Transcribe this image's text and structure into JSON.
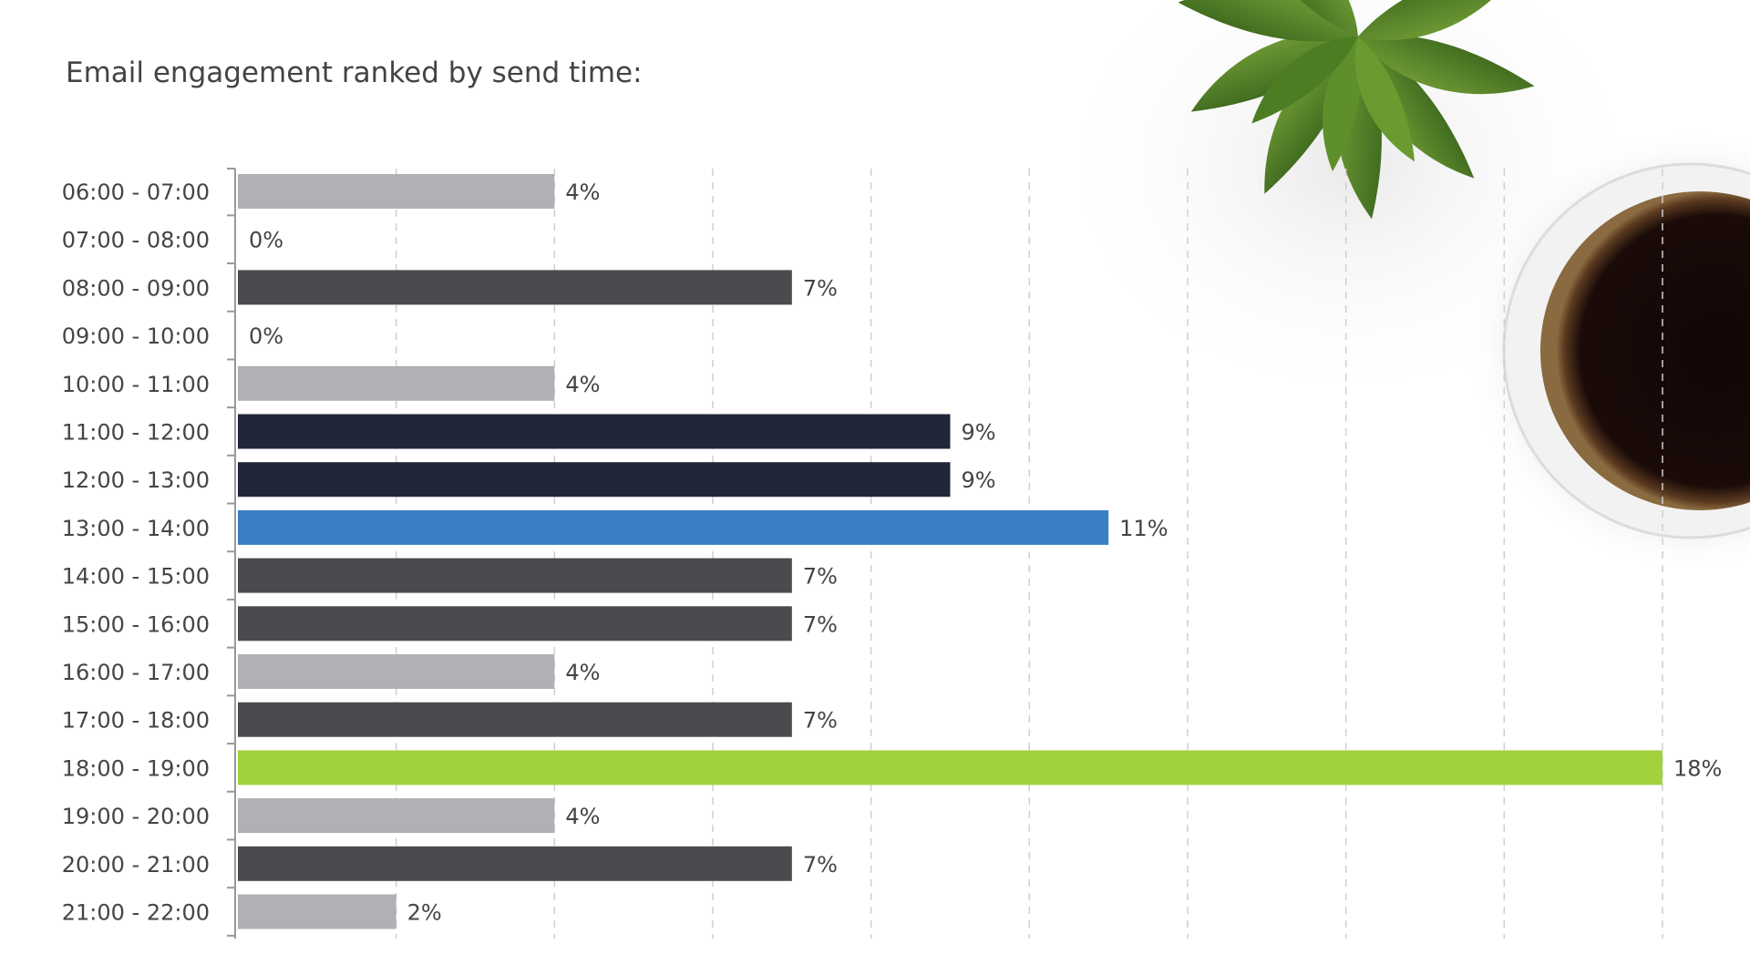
{
  "chart_data": {
    "type": "bar",
    "orientation": "horizontal",
    "title": "Email engagement ranked by send time:",
    "xlabel": "",
    "ylabel": "",
    "xlim": [
      0,
      18
    ],
    "grid_ticks": [
      2,
      4,
      6,
      8,
      10,
      12,
      14,
      16,
      18
    ],
    "grid": true,
    "value_suffix": "%",
    "categories": [
      "06:00 - 07:00",
      "07:00 - 08:00",
      "08:00 - 09:00",
      "09:00 - 10:00",
      "10:00 - 11:00",
      "11:00 - 12:00",
      "12:00 - 13:00",
      "13:00 - 14:00",
      "14:00 - 15:00",
      "15:00 - 16:00",
      "16:00 - 17:00",
      "17:00 - 18:00",
      "18:00 - 19:00",
      "19:00 - 20:00",
      "20:00 - 21:00",
      "21:00 - 22:00"
    ],
    "values": [
      4,
      0,
      7,
      0,
      4,
      9,
      9,
      11,
      7,
      7,
      4,
      7,
      18,
      4,
      7,
      2
    ],
    "labels": [
      "4%",
      "0%",
      "7%",
      "0%",
      "4%",
      "9%",
      "9%",
      "11%",
      "7%",
      "7%",
      "4%",
      "7%",
      "18%",
      "4%",
      "7%",
      "2%"
    ],
    "bar_colors": [
      "#b0b1b4",
      "#b0b1b4",
      "#4b4b4f",
      "#b0b1b4",
      "#b0b1b4",
      "#21263a",
      "#21263a",
      "#3a80c4",
      "#4b4b4f",
      "#4b4b4f",
      "#b0b1b4",
      "#4b4b4f",
      "#a2d140",
      "#b0b1b4",
      "#4b4b4f",
      "#b0b1b4"
    ]
  },
  "colors": {
    "text": "#444444",
    "grid": "#cfcfcf",
    "axis": "#999999",
    "background": "#ffffff"
  },
  "decor": {
    "plant": "succulent-plant",
    "cup": "coffee-cup"
  }
}
